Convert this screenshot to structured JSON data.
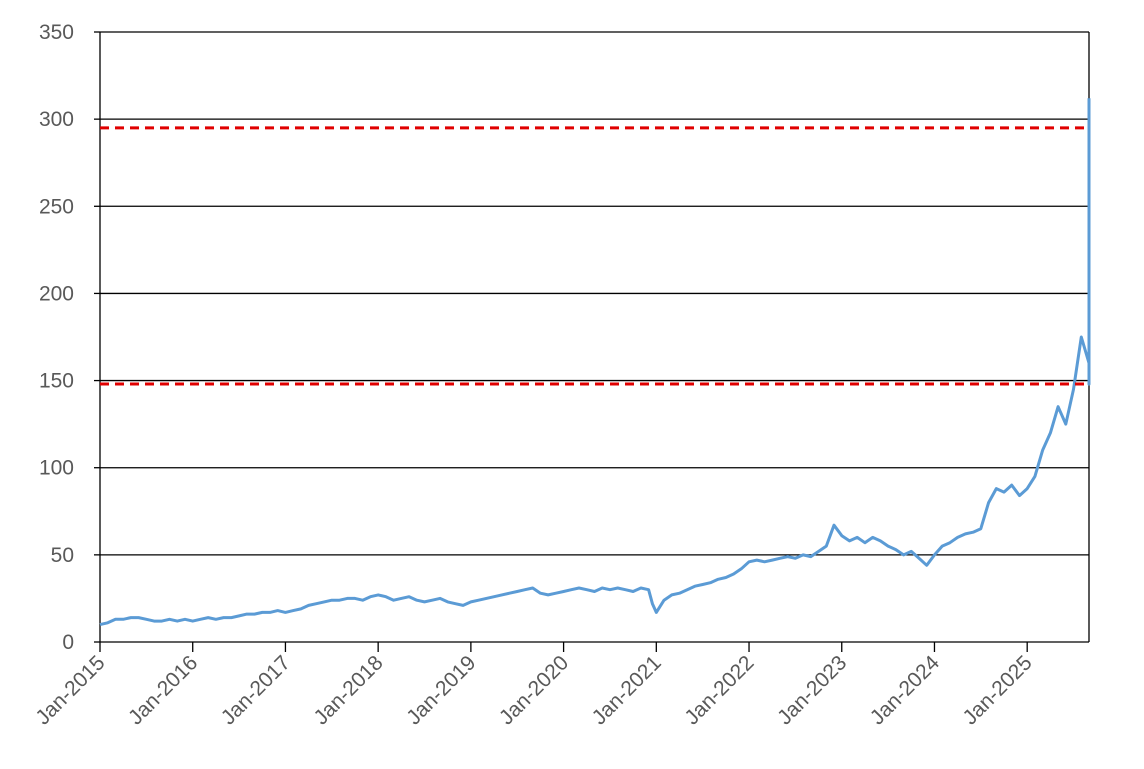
{
  "chart_data": {
    "type": "line",
    "title": "",
    "xlabel": "",
    "ylabel": "",
    "xlim": [
      "2015-01",
      "2025-09"
    ],
    "ylim": [
      0,
      350
    ],
    "yticks": [
      0,
      50,
      100,
      150,
      200,
      250,
      300,
      350
    ],
    "xtick_labels": [
      "Jan-2015",
      "Jan-2016",
      "Jan-2017",
      "Jan-2018",
      "Jan-2019",
      "Jan-2020",
      "Jan-2021",
      "Jan-2022",
      "Jan-2023",
      "Jan-2024",
      "Jan-2025"
    ],
    "grid": "horizontal",
    "legend": "none",
    "series": [
      {
        "color": "#5b9bd5",
        "points": [
          [
            "2015-01",
            10
          ],
          [
            "2015-02",
            11
          ],
          [
            "2015-03",
            13
          ],
          [
            "2015-04",
            13
          ],
          [
            "2015-05",
            14
          ],
          [
            "2015-06",
            14
          ],
          [
            "2015-07",
            13
          ],
          [
            "2015-08",
            12
          ],
          [
            "2015-09",
            12
          ],
          [
            "2015-10",
            13
          ],
          [
            "2015-11",
            12
          ],
          [
            "2015-12",
            13
          ],
          [
            "2016-01",
            12
          ],
          [
            "2016-02",
            13
          ],
          [
            "2016-03",
            14
          ],
          [
            "2016-04",
            13
          ],
          [
            "2016-05",
            14
          ],
          [
            "2016-06",
            14
          ],
          [
            "2016-07",
            15
          ],
          [
            "2016-08",
            16
          ],
          [
            "2016-09",
            16
          ],
          [
            "2016-10",
            17
          ],
          [
            "2016-11",
            17
          ],
          [
            "2016-12",
            18
          ],
          [
            "2017-01",
            17
          ],
          [
            "2017-02",
            18
          ],
          [
            "2017-03",
            19
          ],
          [
            "2017-04",
            21
          ],
          [
            "2017-05",
            22
          ],
          [
            "2017-06",
            23
          ],
          [
            "2017-07",
            24
          ],
          [
            "2017-08",
            24
          ],
          [
            "2017-09",
            25
          ],
          [
            "2017-10",
            25
          ],
          [
            "2017-11",
            24
          ],
          [
            "2017-12",
            26
          ],
          [
            "2018-01",
            27
          ],
          [
            "2018-02",
            26
          ],
          [
            "2018-03",
            24
          ],
          [
            "2018-04",
            25
          ],
          [
            "2018-05",
            26
          ],
          [
            "2018-06",
            24
          ],
          [
            "2018-07",
            23
          ],
          [
            "2018-08",
            24
          ],
          [
            "2018-09",
            25
          ],
          [
            "2018-10",
            23
          ],
          [
            "2018-11",
            22
          ],
          [
            "2018-12",
            21
          ],
          [
            "2019-01",
            23
          ],
          [
            "2019-02",
            24
          ],
          [
            "2019-03",
            25
          ],
          [
            "2019-04",
            26
          ],
          [
            "2019-05",
            27
          ],
          [
            "2019-06",
            28
          ],
          [
            "2019-07",
            29
          ],
          [
            "2019-08",
            30
          ],
          [
            "2019-09",
            31
          ],
          [
            "2019-10",
            28
          ],
          [
            "2019-11",
            27
          ],
          [
            "2019-12",
            28
          ],
          [
            "2020-01",
            29
          ],
          [
            "2020-02",
            30
          ],
          [
            "2020-03",
            31
          ],
          [
            "2020-04",
            30
          ],
          [
            "2020-05",
            29
          ],
          [
            "2020-06",
            31
          ],
          [
            "2020-07",
            30
          ],
          [
            "2020-08",
            31
          ],
          [
            "2020-09",
            30
          ],
          [
            "2020-10",
            29
          ],
          [
            "2020-11",
            31
          ],
          [
            "2020-12",
            30
          ],
          [
            "2020-12",
            22
          ],
          [
            "2021-01",
            17
          ],
          [
            "2021-02",
            24
          ],
          [
            "2021-03",
            27
          ],
          [
            "2021-04",
            28
          ],
          [
            "2021-05",
            30
          ],
          [
            "2021-06",
            32
          ],
          [
            "2021-07",
            33
          ],
          [
            "2021-08",
            34
          ],
          [
            "2021-09",
            36
          ],
          [
            "2021-10",
            37
          ],
          [
            "2021-11",
            39
          ],
          [
            "2021-12",
            42
          ],
          [
            "2022-01",
            46
          ],
          [
            "2022-02",
            47
          ],
          [
            "2022-03",
            46
          ],
          [
            "2022-04",
            47
          ],
          [
            "2022-05",
            48
          ],
          [
            "2022-06",
            49
          ],
          [
            "2022-07",
            48
          ],
          [
            "2022-08",
            50
          ],
          [
            "2022-09",
            49
          ],
          [
            "2022-10",
            52
          ],
          [
            "2022-11",
            55
          ],
          [
            "2022-12",
            67
          ],
          [
            "2023-01",
            61
          ],
          [
            "2023-02",
            58
          ],
          [
            "2023-03",
            60
          ],
          [
            "2023-04",
            57
          ],
          [
            "2023-05",
            60
          ],
          [
            "2023-06",
            58
          ],
          [
            "2023-07",
            55
          ],
          [
            "2023-08",
            53
          ],
          [
            "2023-09",
            50
          ],
          [
            "2023-10",
            52
          ],
          [
            "2023-11",
            48
          ],
          [
            "2023-12",
            44
          ],
          [
            "2024-01",
            50
          ],
          [
            "2024-02",
            55
          ],
          [
            "2024-03",
            57
          ],
          [
            "2024-04",
            60
          ],
          [
            "2024-05",
            62
          ],
          [
            "2024-06",
            63
          ],
          [
            "2024-07",
            65
          ],
          [
            "2024-08",
            80
          ],
          [
            "2024-09",
            88
          ],
          [
            "2024-10",
            86
          ],
          [
            "2024-11",
            90
          ],
          [
            "2024-12",
            84
          ],
          [
            "2025-01",
            88
          ],
          [
            "2025-02",
            95
          ],
          [
            "2025-03",
            110
          ],
          [
            "2025-04",
            120
          ],
          [
            "2025-05",
            135
          ],
          [
            "2025-06",
            125
          ],
          [
            "2025-07",
            145
          ],
          [
            "2025-08",
            175
          ],
          [
            "2025-09",
            160
          ],
          [
            "2025-09",
            150
          ],
          [
            "2025-09",
            165
          ],
          [
            "2025-09",
            175
          ],
          [
            "2025-09",
            170
          ],
          [
            "2025-09",
            250
          ],
          [
            "2025-09",
            230
          ],
          [
            "2025-09",
            210
          ],
          [
            "2025-09",
            180
          ],
          [
            "2025-09",
            148
          ],
          [
            "2025-09",
            200
          ],
          [
            "2025-09",
            245
          ],
          [
            "2025-09",
            265
          ],
          [
            "2025-09",
            285
          ],
          [
            "2025-09",
            300
          ],
          [
            "2025-09",
            312
          ]
        ]
      }
    ],
    "reference_lines": [
      {
        "y": 295,
        "color": "#e00000",
        "style": "dashed"
      },
      {
        "y": 148,
        "color": "#e00000",
        "style": "dashed"
      }
    ]
  }
}
